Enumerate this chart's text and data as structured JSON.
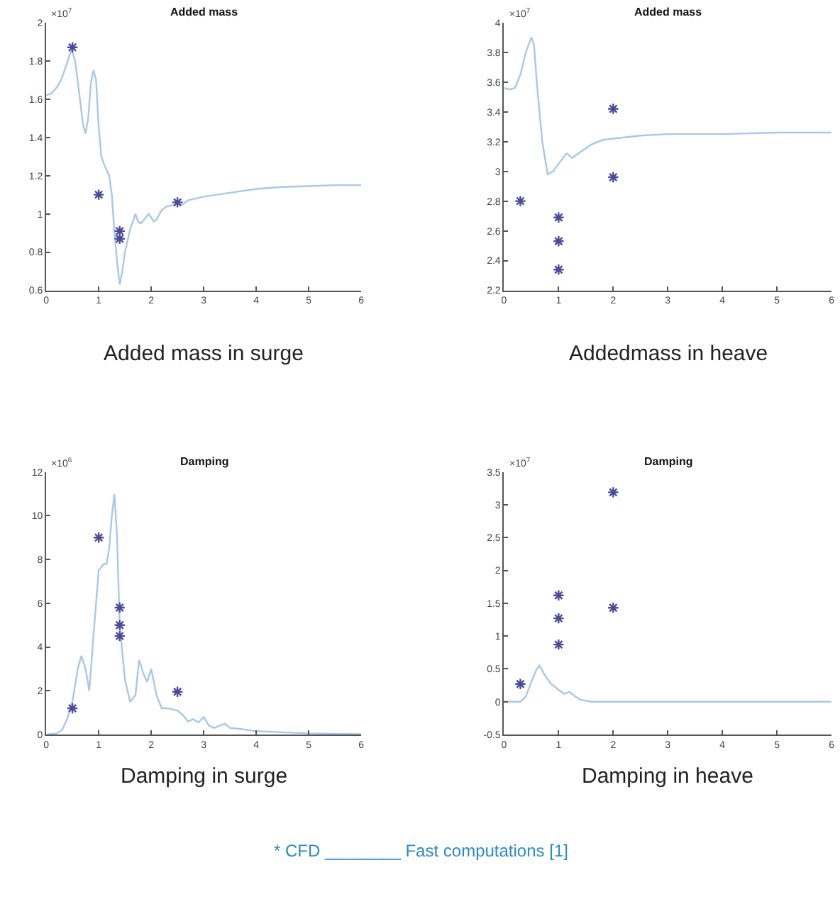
{
  "chart_data": [
    {
      "type": "line",
      "title": "Added mass",
      "xlabel": "Added mass in surge",
      "annotations": [
        "×10$^{7}$"
      ],
      "xlim": [
        0,
        6
      ],
      "xticks": [
        0,
        1,
        2,
        3,
        4,
        5,
        6
      ],
      "ylim": [
        0.6,
        2
      ],
      "yticks": [
        0.6,
        0.8,
        1,
        1.2,
        1.4,
        1.6,
        1.8,
        2
      ],
      "grid": false,
      "series": [
        {
          "color": "#a8c8e8",
          "x": [
            0,
            0.1,
            0.2,
            0.3,
            0.4,
            0.48,
            0.55,
            0.62,
            0.7,
            0.75,
            0.8,
            0.85,
            0.9,
            0.95,
            1.0,
            1.05,
            1.1,
            1.2,
            1.25,
            1.3,
            1.35,
            1.4,
            1.45,
            1.5,
            1.6,
            1.7,
            1.75,
            1.8,
            1.9,
            1.95,
            2.0,
            2.05,
            2.1,
            2.2,
            2.3,
            2.5,
            2.6,
            2.7,
            3.0,
            3.5,
            4,
            4.5,
            5,
            5.5,
            6
          ],
          "values": [
            1.62,
            1.63,
            1.66,
            1.71,
            1.79,
            1.86,
            1.8,
            1.65,
            1.47,
            1.42,
            1.5,
            1.68,
            1.75,
            1.7,
            1.45,
            1.3,
            1.26,
            1.2,
            1.1,
            0.9,
            0.75,
            0.63,
            0.7,
            0.8,
            0.92,
            1.0,
            0.96,
            0.95,
            0.98,
            1.0,
            0.98,
            0.96,
            0.97,
            1.02,
            1.04,
            1.05,
            1.05,
            1.07,
            1.09,
            1.11,
            1.13,
            1.14,
            1.145,
            1.15,
            1.15
          ]
        },
        {
          "type": "scatter",
          "color": "#4a4a9a",
          "marker": "cross",
          "x": [
            0.5,
            1.0,
            1.4,
            1.4,
            2.5
          ],
          "values": [
            1.87,
            1.1,
            0.91,
            0.87,
            1.06
          ]
        }
      ]
    },
    {
      "type": "line",
      "title": "Added mass",
      "xlabel": "Addedmass in heave",
      "annotations": [
        "×10$^{7}$"
      ],
      "xlim": [
        0,
        6
      ],
      "xticks": [
        0,
        1,
        2,
        3,
        4,
        5,
        6
      ],
      "ylim": [
        2.2,
        4
      ],
      "yticks": [
        2.2,
        2.4,
        2.6,
        2.8,
        3,
        3.2,
        3.4,
        3.6,
        3.8,
        4
      ],
      "grid": false,
      "series": [
        {
          "color": "#a8c8e8",
          "x": [
            0,
            0.1,
            0.2,
            0.3,
            0.4,
            0.5,
            0.55,
            0.6,
            0.7,
            0.8,
            0.9,
            1.0,
            1.1,
            1.15,
            1.25,
            1.4,
            1.6,
            1.8,
            2.0,
            2.5,
            3,
            4,
            5,
            6
          ],
          "values": [
            3.56,
            3.55,
            3.56,
            3.65,
            3.8,
            3.9,
            3.85,
            3.6,
            3.2,
            2.98,
            3.0,
            3.05,
            3.1,
            3.12,
            3.09,
            3.13,
            3.18,
            3.21,
            3.22,
            3.24,
            3.25,
            3.25,
            3.26,
            3.26
          ]
        },
        {
          "type": "scatter",
          "color": "#4a4a9a",
          "marker": "cross",
          "x": [
            0.3,
            1,
            1,
            1,
            2,
            2
          ],
          "values": [
            2.8,
            2.69,
            2.53,
            2.34,
            3.42,
            2.96
          ]
        }
      ]
    },
    {
      "type": "line",
      "title": "Damping",
      "xlabel": "Damping in surge",
      "annotations": [
        "×10$^{6}$"
      ],
      "xlim": [
        0,
        6
      ],
      "xticks": [
        0,
        1,
        2,
        3,
        4,
        5,
        6
      ],
      "ylim": [
        0,
        12
      ],
      "yticks": [
        0,
        2,
        4,
        6,
        8,
        10,
        12
      ],
      "grid": false,
      "series": [
        {
          "color": "#a8c8e8",
          "x": [
            0,
            0.2,
            0.3,
            0.4,
            0.5,
            0.6,
            0.67,
            0.75,
            0.82,
            0.9,
            1.0,
            1.1,
            1.15,
            1.2,
            1.25,
            1.3,
            1.35,
            1.4,
            1.5,
            1.6,
            1.7,
            1.77,
            1.85,
            1.92,
            2.0,
            2.1,
            2.2,
            2.3,
            2.5,
            2.6,
            2.7,
            2.8,
            2.9,
            3.0,
            3.1,
            3.2,
            3.4,
            3.5,
            3.7,
            4.0,
            4.5,
            5,
            5.5,
            6
          ],
          "values": [
            0,
            0.05,
            0.2,
            0.7,
            1.5,
            3.0,
            3.6,
            3.0,
            2.0,
            4.5,
            7.5,
            7.8,
            7.8,
            8.5,
            10.0,
            11.0,
            9.0,
            5.0,
            2.5,
            1.5,
            1.8,
            3.4,
            2.8,
            2.4,
            3.0,
            1.8,
            1.2,
            1.2,
            1.1,
            0.9,
            0.6,
            0.7,
            0.55,
            0.8,
            0.4,
            0.3,
            0.5,
            0.3,
            0.25,
            0.15,
            0.1,
            0.05,
            0.03,
            0.02
          ]
        },
        {
          "type": "scatter",
          "color": "#4a4a9a",
          "marker": "cross",
          "x": [
            0.5,
            1,
            1.4,
            1.4,
            1.4,
            2.5
          ],
          "values": [
            1.2,
            9.0,
            5.8,
            5.0,
            4.5,
            1.95
          ]
        }
      ]
    },
    {
      "type": "line",
      "title": "Damping",
      "xlabel": "Damping in heave",
      "annotations": [
        "×10$^{7}$",
        "* CFD ________ Fast computations [1]"
      ],
      "xlim": [
        0,
        6
      ],
      "xticks": [
        0,
        1,
        2,
        3,
        4,
        5,
        6
      ],
      "ylim": [
        -0.5,
        3.5
      ],
      "yticks": [
        -0.5,
        0,
        0.5,
        1,
        1.5,
        2,
        2.5,
        3,
        3.5
      ],
      "grid": false,
      "series": [
        {
          "color": "#a8c8e8",
          "x": [
            0,
            0.3,
            0.4,
            0.5,
            0.6,
            0.65,
            0.75,
            0.85,
            1.0,
            1.1,
            1.2,
            1.3,
            1.4,
            1.6,
            6
          ],
          "values": [
            0,
            0,
            0.08,
            0.3,
            0.5,
            0.55,
            0.4,
            0.28,
            0.18,
            0.12,
            0.15,
            0.08,
            0.03,
            0,
            0
          ]
        },
        {
          "type": "scatter",
          "color": "#4a4a9a",
          "marker": "cross",
          "x": [
            0.3,
            1,
            1,
            1,
            2,
            2
          ],
          "values": [
            0.27,
            1.62,
            1.27,
            0.87,
            3.19,
            1.43
          ]
        }
      ]
    }
  ]
}
